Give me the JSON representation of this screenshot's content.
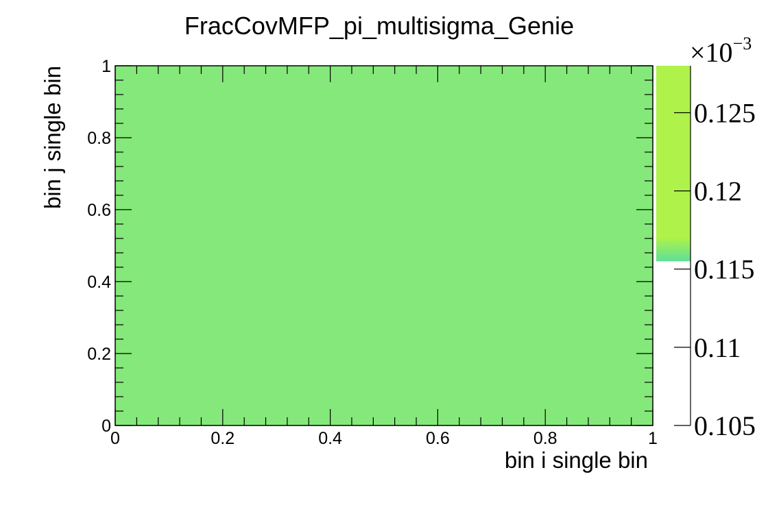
{
  "chart_data": {
    "type": "heatmap",
    "title": "FracCovMFP_pi_multisigma_Genie",
    "xlabel": "bin i single bin",
    "ylabel": "bin j single bin",
    "xlim": [
      0,
      1
    ],
    "ylim": [
      0,
      1
    ],
    "x_ticks": [
      "0",
      "0.2",
      "0.4",
      "0.6",
      "0.8",
      "1"
    ],
    "y_ticks": [
      "0",
      "0.2",
      "0.4",
      "0.6",
      "0.8",
      "1"
    ],
    "cells": [
      {
        "x": [
          0,
          1
        ],
        "y": [
          0,
          1
        ],
        "value": 0.000116,
        "color": "#85e87a"
      }
    ],
    "colorbar": {
      "multiplier": "×10",
      "exponent": "−3",
      "range": [
        0.105,
        0.128
      ],
      "tick_values": [
        0.105,
        0.11,
        0.115,
        0.12,
        0.125
      ],
      "tick_labels": [
        "0.105",
        "0.11",
        "0.115",
        "0.12",
        "0.125"
      ],
      "filled_from": 0.1155,
      "colors": {
        "bottom": "#5ee09a",
        "top": "#aef24a"
      }
    },
    "grid": false,
    "legend": "none"
  }
}
